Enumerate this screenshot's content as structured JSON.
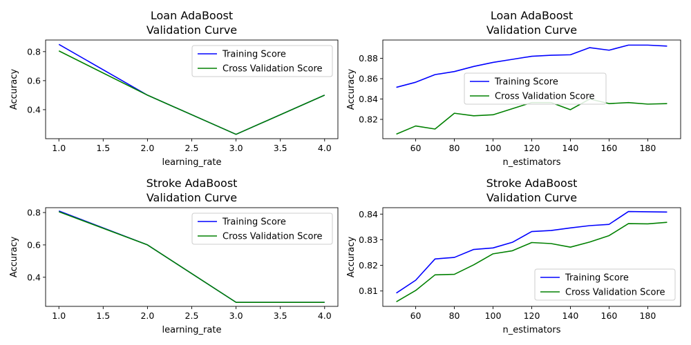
{
  "chart_data": [
    {
      "type": "line",
      "title": "Loan AdaBoost\nValidation Curve",
      "xlabel": "learning_rate",
      "ylabel": "Accuracy",
      "xlim": [
        0.85,
        4.15
      ],
      "ylim": [
        0.2,
        0.88
      ],
      "xticks": [
        1.0,
        1.5,
        2.0,
        2.5,
        3.0,
        3.5,
        4.0
      ],
      "xtick_labels": [
        "1.0",
        "1.5",
        "2.0",
        "2.5",
        "3.0",
        "3.5",
        "4.0"
      ],
      "yticks": [
        0.4,
        0.6,
        0.8
      ],
      "ytick_labels": [
        "0.4",
        "0.6",
        "0.8"
      ],
      "legend_position": "upper-right",
      "x": [
        1.0,
        2.0,
        3.0,
        4.0
      ],
      "series": [
        {
          "name": "Training Score",
          "color": "#0000ff",
          "values": [
            0.85,
            0.5,
            0.23,
            0.5
          ]
        },
        {
          "name": "Cross Validation Score",
          "color": "#008000",
          "values": [
            0.805,
            0.5,
            0.23,
            0.5
          ]
        }
      ]
    },
    {
      "type": "line",
      "title": "Loan AdaBoost\nValidation Curve",
      "xlabel": "n_estimators",
      "ylabel": "Accuracy",
      "xlim": [
        43,
        197
      ],
      "ylim": [
        0.801,
        0.898
      ],
      "xticks": [
        60,
        80,
        100,
        120,
        140,
        160,
        180
      ],
      "xtick_labels": [
        "60",
        "80",
        "100",
        "120",
        "140",
        "160",
        "180"
      ],
      "yticks": [
        0.82,
        0.84,
        0.86,
        0.88
      ],
      "ytick_labels": [
        "0.82",
        "0.84",
        "0.86",
        "0.88"
      ],
      "legend_position": "center",
      "x": [
        50,
        60,
        70,
        80,
        90,
        100,
        110,
        120,
        130,
        140,
        150,
        160,
        170,
        180,
        190
      ],
      "series": [
        {
          "name": "Training Score",
          "color": "#0000ff",
          "values": [
            0.8515,
            0.8565,
            0.864,
            0.867,
            0.872,
            0.876,
            0.879,
            0.882,
            0.883,
            0.8835,
            0.8905,
            0.888,
            0.893,
            0.893,
            0.892
          ]
        },
        {
          "name": "Cross Validation Score",
          "color": "#008000",
          "values": [
            0.8055,
            0.8135,
            0.8105,
            0.826,
            0.8235,
            0.8245,
            0.8305,
            0.8365,
            0.8365,
            0.8295,
            0.84,
            0.8355,
            0.8365,
            0.835,
            0.8355
          ]
        }
      ]
    },
    {
      "type": "line",
      "title": "Stroke AdaBoost\nValidation Curve",
      "xlabel": "learning_rate",
      "ylabel": "Accuracy",
      "xlim": [
        0.85,
        4.15
      ],
      "ylim": [
        0.22,
        0.83
      ],
      "xticks": [
        1.0,
        1.5,
        2.0,
        2.5,
        3.0,
        3.5,
        4.0
      ],
      "xtick_labels": [
        "1.0",
        "1.5",
        "2.0",
        "2.5",
        "3.0",
        "3.5",
        "4.0"
      ],
      "yticks": [
        0.4,
        0.6,
        0.8
      ],
      "ytick_labels": [
        "0.4",
        "0.6",
        "0.8"
      ],
      "legend_position": "upper-right",
      "x": [
        1.0,
        2.0,
        3.0,
        4.0
      ],
      "series": [
        {
          "name": "Training Score",
          "color": "#0000ff",
          "values": [
            0.81,
            0.6,
            0.245,
            0.245
          ]
        },
        {
          "name": "Cross Validation Score",
          "color": "#008000",
          "values": [
            0.805,
            0.6,
            0.245,
            0.245
          ]
        }
      ]
    },
    {
      "type": "line",
      "title": "Stroke AdaBoost\nValidation Curve",
      "xlabel": "n_estimators",
      "ylabel": "Accuracy",
      "xlim": [
        43,
        197
      ],
      "ylim": [
        0.804,
        0.8425
      ],
      "xticks": [
        60,
        80,
        100,
        120,
        140,
        160,
        180
      ],
      "xtick_labels": [
        "60",
        "80",
        "100",
        "120",
        "140",
        "160",
        "180"
      ],
      "yticks": [
        0.81,
        0.82,
        0.83,
        0.84
      ],
      "ytick_labels": [
        "0.81",
        "0.82",
        "0.83",
        "0.84"
      ],
      "legend_position": "lower-right",
      "x": [
        50,
        60,
        70,
        80,
        90,
        100,
        110,
        120,
        130,
        140,
        150,
        160,
        170,
        180,
        190
      ],
      "series": [
        {
          "name": "Training Score",
          "color": "#0000ff",
          "values": [
            0.8092,
            0.8142,
            0.8225,
            0.8231,
            0.8262,
            0.8268,
            0.829,
            0.8332,
            0.8336,
            0.8346,
            0.8355,
            0.836,
            0.841,
            0.8409,
            0.8408
          ]
        },
        {
          "name": "Cross Validation Score",
          "color": "#008000",
          "values": [
            0.8058,
            0.8102,
            0.8163,
            0.8165,
            0.8202,
            0.8245,
            0.8257,
            0.8289,
            0.8285,
            0.8271,
            0.8291,
            0.8316,
            0.8363,
            0.8362,
            0.8368
          ]
        }
      ]
    }
  ]
}
